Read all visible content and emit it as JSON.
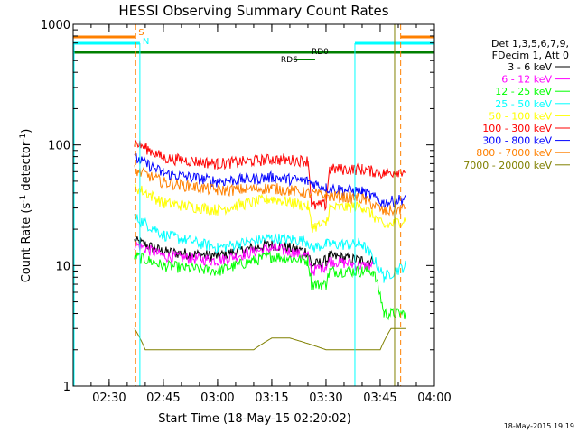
{
  "chart_data": {
    "type": "line",
    "title": "HESSI Observing Summary Count Rates",
    "xlabel": "Start Time (18-May-15 02:20:02)",
    "ylabel": "Count Rate (s",
    "ylabel_sup1": "-1",
    "ylabel_mid": " detector",
    "ylabel_sup2": "-1",
    "ylabel_end": ")",
    "y_scale": "log",
    "ylim": [
      1,
      1000
    ],
    "xlim": [
      "02:20:02",
      "04:00:00"
    ],
    "x_ticks": [
      "02:30",
      "02:45",
      "03:00",
      "03:15",
      "03:30",
      "03:45",
      "04:00"
    ],
    "y_ticks": [
      "1",
      "10",
      "100",
      "1000"
    ],
    "timestamp": "18-May-2015 19:19",
    "legend_header": [
      "Det 1,3,5,6,7,9,",
      "FDecim 1, Att 0"
    ],
    "legend_placement": "right",
    "series": [
      {
        "name": "3 - 6 keV",
        "color": "#000000",
        "points": [
          [
            "02:37:00",
            16
          ],
          [
            "02:45:00",
            13
          ],
          [
            "03:00:00",
            12
          ],
          [
            "03:15:00",
            15
          ],
          [
            "03:25:00",
            13
          ],
          [
            "03:26:00",
            10
          ],
          [
            "03:30:00",
            11
          ],
          [
            "03:31:00",
            12
          ],
          [
            "03:40:00",
            11
          ],
          [
            "03:43:00",
            11
          ]
        ]
      },
      {
        "name": "6 - 12 keV",
        "color": "#ff00ff",
        "points": [
          [
            "02:37:00",
            15
          ],
          [
            "02:45:00",
            12
          ],
          [
            "03:00:00",
            11
          ],
          [
            "03:15:00",
            14
          ],
          [
            "03:25:00",
            12
          ],
          [
            "03:26:00",
            9
          ],
          [
            "03:30:00",
            10
          ],
          [
            "03:31:00",
            11
          ],
          [
            "03:40:00",
            10
          ],
          [
            "03:43:00",
            10
          ]
        ]
      },
      {
        "name": "12 - 25 keV",
        "color": "#00ff00",
        "points": [
          [
            "02:37:00",
            12
          ],
          [
            "02:45:00",
            10
          ],
          [
            "03:00:00",
            9
          ],
          [
            "03:15:00",
            12
          ],
          [
            "03:25:00",
            11
          ],
          [
            "03:26:00",
            7
          ],
          [
            "03:30:00",
            7
          ],
          [
            "03:31:00",
            9
          ],
          [
            "03:40:00",
            9
          ],
          [
            "03:43:00",
            9
          ],
          [
            "03:46:00",
            4
          ],
          [
            "03:52:00",
            4
          ]
        ]
      },
      {
        "name": "25 - 50 keV",
        "color": "#00ffff",
        "points": [
          [
            "02:37:00",
            25
          ],
          [
            "02:45:00",
            18
          ],
          [
            "03:00:00",
            14
          ],
          [
            "03:15:00",
            17
          ],
          [
            "03:25:00",
            16
          ],
          [
            "03:26:00",
            14
          ],
          [
            "03:30:00",
            15
          ],
          [
            "03:31:00",
            15
          ],
          [
            "03:40:00",
            15
          ],
          [
            "03:46:00",
            8
          ],
          [
            "03:52:00",
            10
          ]
        ]
      },
      {
        "name": "50 - 100 keV",
        "color": "#ffff00",
        "points": [
          [
            "02:37:00",
            45
          ],
          [
            "02:45:00",
            33
          ],
          [
            "03:00:00",
            29
          ],
          [
            "03:15:00",
            36
          ],
          [
            "03:25:00",
            31
          ],
          [
            "03:26:00",
            21
          ],
          [
            "03:30:00",
            22
          ],
          [
            "03:31:00",
            30
          ],
          [
            "03:40:00",
            31
          ],
          [
            "03:46:00",
            21
          ],
          [
            "03:52:00",
            24
          ]
        ]
      },
      {
        "name": "100 - 300 keV",
        "color": "#ff0000",
        "points": [
          [
            "02:37:00",
            105
          ],
          [
            "02:45:00",
            78
          ],
          [
            "03:00:00",
            70
          ],
          [
            "03:15:00",
            76
          ],
          [
            "03:25:00",
            74
          ],
          [
            "03:26:00",
            31
          ],
          [
            "03:30:00",
            32
          ],
          [
            "03:31:00",
            63
          ],
          [
            "03:40:00",
            63
          ],
          [
            "03:46:00",
            58
          ],
          [
            "03:52:00",
            62
          ]
        ]
      },
      {
        "name": "300 - 800 keV",
        "color": "#0000ff",
        "points": [
          [
            "02:37:00",
            78
          ],
          [
            "02:45:00",
            58
          ],
          [
            "03:00:00",
            50
          ],
          [
            "03:15:00",
            54
          ],
          [
            "03:25:00",
            50
          ],
          [
            "03:30:00",
            44
          ],
          [
            "03:40:00",
            41
          ],
          [
            "03:46:00",
            33
          ],
          [
            "03:52:00",
            36
          ]
        ]
      },
      {
        "name": "800 - 7000 keV",
        "color": "#ff8000",
        "points": [
          [
            "02:37:00",
            62
          ],
          [
            "02:45:00",
            49
          ],
          [
            "03:00:00",
            42
          ],
          [
            "03:15:00",
            44
          ],
          [
            "03:25:00",
            40
          ],
          [
            "03:30:00",
            38
          ],
          [
            "03:40:00",
            36
          ],
          [
            "03:46:00",
            28
          ],
          [
            "03:52:00",
            30
          ]
        ]
      },
      {
        "name": "7000 - 20000 keV",
        "color": "#808000",
        "points": [
          [
            "02:37:00",
            3
          ],
          [
            "02:40:00",
            2
          ],
          [
            "02:50:00",
            2
          ],
          [
            "03:00:00",
            2
          ],
          [
            "03:10:00",
            2
          ],
          [
            "03:15:00",
            2.5
          ],
          [
            "03:20:00",
            2.5
          ],
          [
            "03:30:00",
            2
          ],
          [
            "03:40:00",
            2
          ],
          [
            "03:45:00",
            2
          ],
          [
            "03:48:00",
            3
          ],
          [
            "03:52:00",
            3
          ]
        ]
      }
    ],
    "annotations": [
      {
        "label": "S",
        "color": "#ff8000",
        "at": "02:37:20"
      },
      {
        "label": "N",
        "color": "#00ffff",
        "at": "02:38:30"
      },
      {
        "label": "RD0",
        "color": "#008000"
      },
      {
        "label": "RD6",
        "color": "#008000"
      }
    ]
  }
}
